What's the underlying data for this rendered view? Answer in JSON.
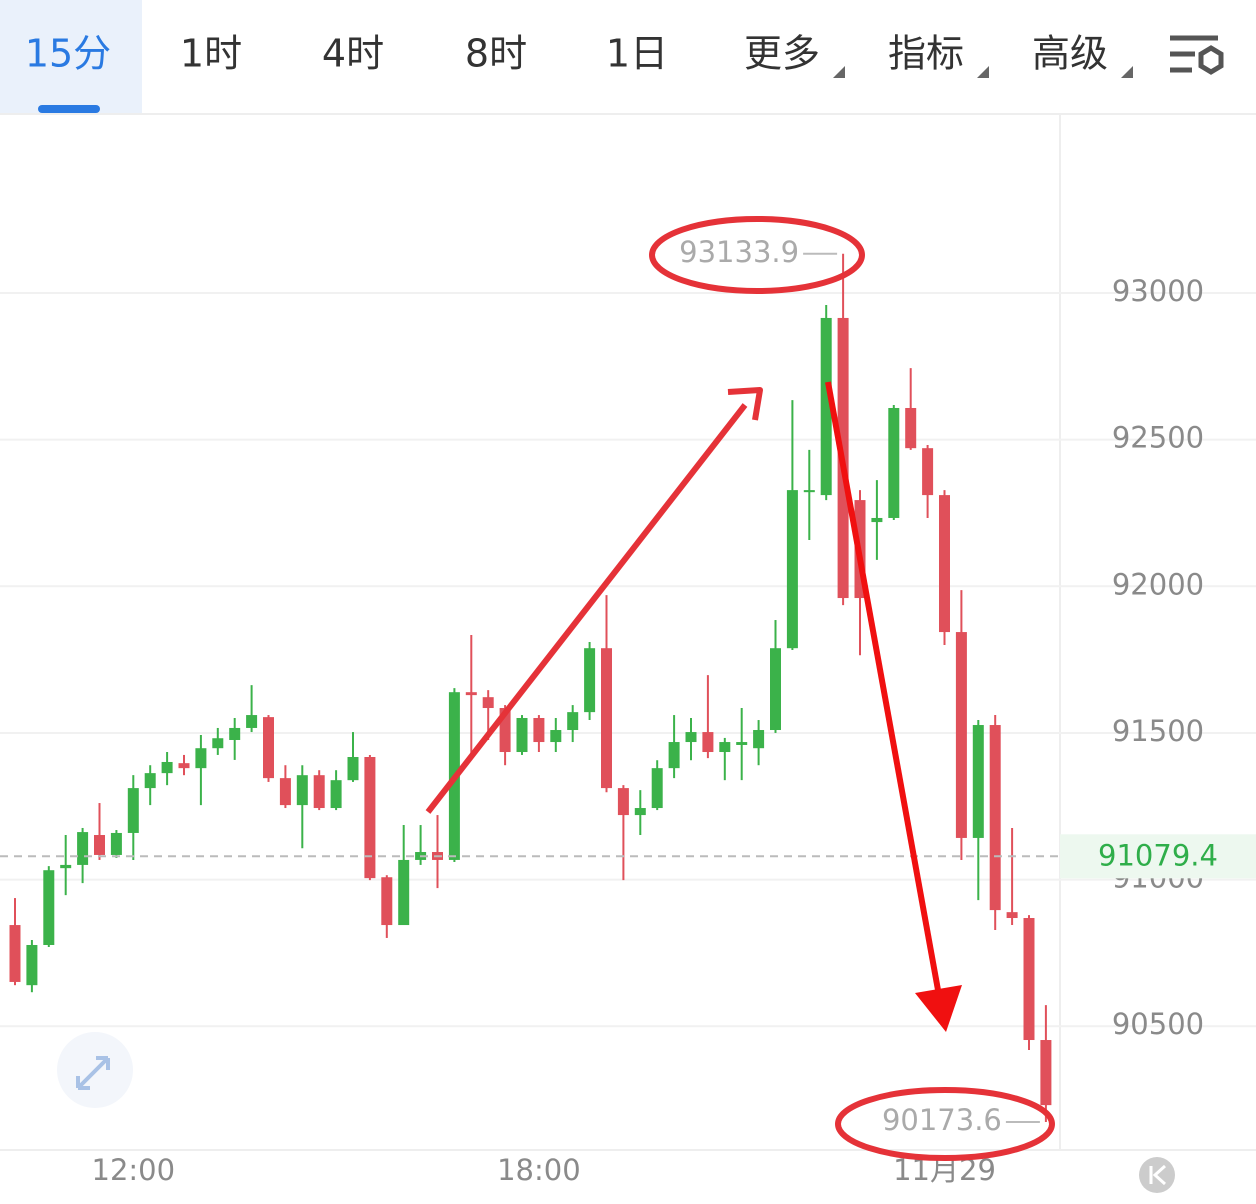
{
  "tabs": [
    "15分",
    "1时",
    "4时",
    "8时",
    "1日",
    "更多",
    "指标",
    "高级"
  ],
  "chart_data": {
    "type": "candlestick",
    "categories": [
      null,
      null,
      null,
      null,
      null,
      null,
      null,
      "12:00",
      null,
      null,
      null,
      null,
      null,
      null,
      null,
      null,
      null,
      null,
      null,
      null,
      null,
      null,
      null,
      null,
      null,
      null,
      null,
      null,
      null,
      null,
      null,
      "18:00",
      null,
      null,
      null,
      null,
      null,
      null,
      null,
      null,
      null,
      null,
      null,
      null,
      null,
      null,
      null,
      null,
      null,
      null,
      null,
      null,
      null,
      null,
      null,
      "11月29",
      null,
      null,
      null,
      null,
      null,
      null
    ],
    "open": [
      90845,
      90640,
      90777,
      91039,
      91050,
      91152,
      91084,
      91159,
      91312,
      91363,
      91397,
      91380,
      91448,
      91476,
      91517,
      91554,
      91346,
      91254,
      91356,
      91244,
      91339,
      91418,
      91008,
      90845,
      91067,
      91094,
      91067,
      91639,
      91622,
      91585,
      91435,
      91551,
      91469,
      91510,
      91571,
      91789,
      91312,
      91220,
      91244,
      91380,
      91469,
      91503,
      91435,
      91459,
      91448,
      91510,
      91789,
      92321,
      92311,
      92915,
      92294,
      92219,
      92233,
      92608,
      92471,
      92311,
      91844,
      91142,
      91527,
      90889,
      90869,
      90453
    ],
    "high": [
      90937,
      90794,
      91046,
      91152,
      91176,
      91261,
      91169,
      91356,
      91390,
      91435,
      91425,
      91493,
      91517,
      91551,
      91663,
      91561,
      91390,
      91390,
      91373,
      91373,
      91503,
      91425,
      91015,
      91186,
      91186,
      91220,
      91653,
      91834,
      91646,
      91595,
      91561,
      91561,
      91551,
      91595,
      91810,
      91970,
      91322,
      91305,
      91407,
      91561,
      91551,
      91697,
      91483,
      91585,
      91544,
      91885,
      92635,
      92465,
      92959,
      93133.9,
      92328,
      92362,
      92618,
      92744,
      92482,
      92328,
      91987,
      91544,
      91561,
      91176,
      90879,
      90572
    ],
    "low": [
      90640,
      90616,
      90770,
      90947,
      90988,
      91067,
      91074,
      91067,
      91254,
      91322,
      91356,
      91254,
      91425,
      91408,
      91503,
      91333,
      91244,
      91107,
      91237,
      91237,
      91333,
      90998,
      90801,
      90845,
      91050,
      90971,
      91060,
      91408,
      91476,
      91390,
      91425,
      91435,
      91435,
      91469,
      91544,
      91298,
      90998,
      91152,
      91237,
      91346,
      91407,
      91414,
      91339,
      91339,
      91390,
      91500,
      91783,
      92158,
      92294,
      91936,
      91765,
      92090,
      92226,
      92465,
      92233,
      91800,
      91067,
      90930,
      90828,
      90845,
      90419,
      90173.6
    ],
    "close": [
      90651,
      90777,
      91032,
      91050,
      91162,
      91084,
      91159,
      91312,
      91363,
      91401,
      91380,
      91448,
      91482,
      91517,
      91561,
      91346,
      91254,
      91356,
      91244,
      91339,
      91418,
      91005,
      90845,
      91067,
      91094,
      91067,
      91639,
      91629,
      91585,
      91435,
      91551,
      91469,
      91510,
      91571,
      91789,
      91312,
      91220,
      91244,
      91380,
      91469,
      91503,
      91435,
      91469,
      91469,
      91510,
      91789,
      92328,
      92328,
      92915,
      91960,
      91960,
      92233,
      92608,
      92471,
      92311,
      91844,
      91142,
      91527,
      90896,
      90869,
      90453,
      90231
    ],
    "up_color": "#3bb24a",
    "down_color": "#e0505a",
    "last_price": 91079.4,
    "ylim": [
      90078,
      93607
    ],
    "yticks": [
      90500,
      91000,
      91500,
      92000,
      92500,
      93000
    ],
    "grid": true
  }
}
